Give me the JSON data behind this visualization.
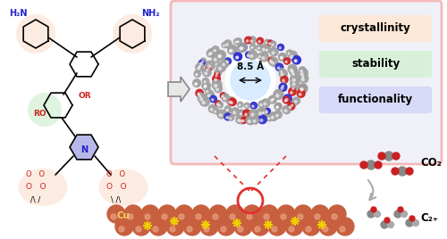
{
  "bg_color": "#ffffff",
  "box_color": "#f5b8b8",
  "box_bg": "#f0f0f8",
  "crystallinity_bg": "#fde8d8",
  "stability_bg": "#d8f0d8",
  "functionality_bg": "#d8d8f8",
  "label_crystallinity": "crystallinity",
  "label_stability": "stability",
  "label_functionality": "functionality",
  "label_85": "8.5 Å",
  "label_CO2": "CO₂",
  "label_C2": "C₂₊",
  "label_Cu": "Cu",
  "arrow_color": "#888888",
  "dot_line_color": "#e03030",
  "nh2_color": "#2222cc",
  "N_color": "#2222cc",
  "O_color": "#cc2222",
  "highlight_salmon": "#f5c8a8",
  "highlight_green": "#b8e8b8",
  "highlight_red_border": "#e03030",
  "cu_color": "#c86040",
  "cu_shine": "#e8a080",
  "molecule_gray": "#a0a0a0",
  "molecule_blue": "#3030cc",
  "molecule_red": "#cc2020"
}
